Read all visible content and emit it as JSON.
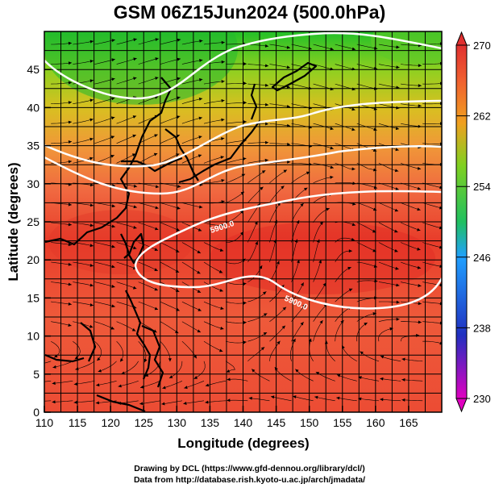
{
  "title": "GSM 06Z15Jun2024 (500.0hPa)",
  "x_axis": {
    "label": "Longitude (degrees)",
    "ticks": [
      "110",
      "115",
      "120",
      "125",
      "130",
      "135",
      "140",
      "145",
      "150",
      "155",
      "160",
      "165"
    ],
    "range": [
      110,
      170
    ]
  },
  "y_axis": {
    "label": "Latitude  (degrees)",
    "ticks": [
      "0",
      "5",
      "10",
      "15",
      "20",
      "25",
      "30",
      "35",
      "40",
      "45"
    ],
    "range": [
      0,
      50
    ]
  },
  "colorbar": {
    "labels": [
      "270",
      "262",
      "254",
      "246",
      "238",
      "230"
    ],
    "range": [
      230,
      270
    ],
    "colors": [
      "#e000c0",
      "#2030c0",
      "#20a0ff",
      "#20c040",
      "#f0f000",
      "#f08020",
      "#e03030"
    ]
  },
  "contours": [
    {
      "label": "5900.0"
    },
    {
      "label": "5900.0"
    }
  ],
  "credits": {
    "line1": "Drawing by DCL (https://www.gfd-dennou.org/library/dcl/)",
    "line2": "Data from http://database.rish.kyoto-u.ac.jp/arch/jmadata/"
  }
}
